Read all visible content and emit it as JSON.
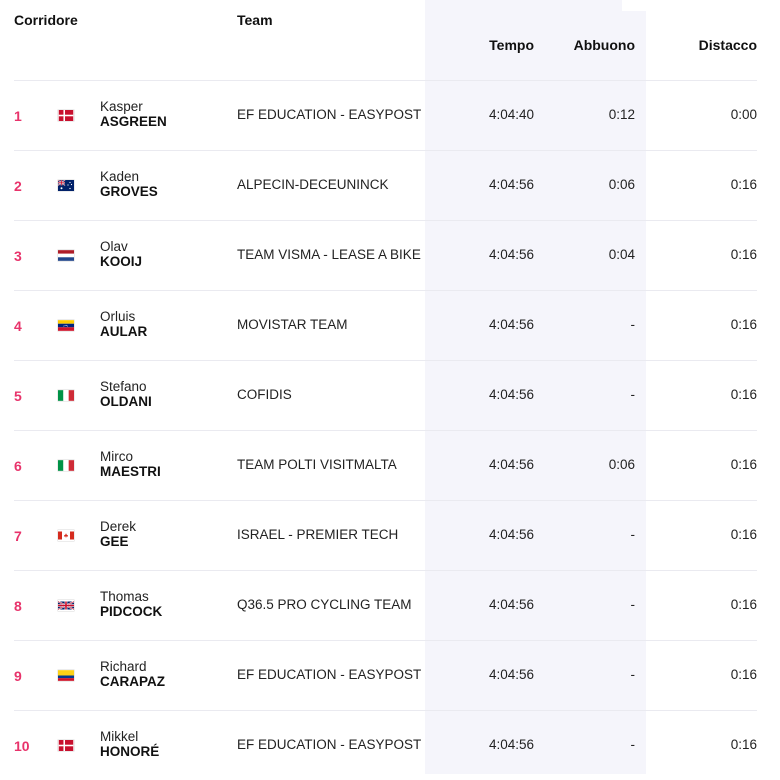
{
  "header": {
    "rider": "Corridore",
    "team": "Team",
    "time": "Tempo",
    "bonus": "Abbuono",
    "gap": "Distacco"
  },
  "rows": [
    {
      "rank": "1",
      "flag": "denmark-flag-icon",
      "first": "Kasper",
      "last": "ASGREEN",
      "team": "EF EDUCATION - EASYPOST",
      "time": "4:04:40",
      "bonus": "0:12",
      "gap": "0:00"
    },
    {
      "rank": "2",
      "flag": "australia-flag-icon",
      "first": "Kaden",
      "last": "GROVES",
      "team": "ALPECIN-DECEUNINCK",
      "time": "4:04:56",
      "bonus": "0:06",
      "gap": "0:16"
    },
    {
      "rank": "3",
      "flag": "netherlands-flag-icon",
      "first": "Olav",
      "last": "KOOIJ",
      "team": "TEAM VISMA - LEASE A BIKE",
      "time": "4:04:56",
      "bonus": "0:04",
      "gap": "0:16"
    },
    {
      "rank": "4",
      "flag": "venezuela-flag-icon",
      "first": "Orluis",
      "last": "AULAR",
      "team": "MOVISTAR TEAM",
      "time": "4:04:56",
      "bonus": "-",
      "gap": "0:16"
    },
    {
      "rank": "5",
      "flag": "italy-flag-icon",
      "first": "Stefano",
      "last": "OLDANI",
      "team": "COFIDIS",
      "time": "4:04:56",
      "bonus": "-",
      "gap": "0:16"
    },
    {
      "rank": "6",
      "flag": "italy-flag-icon",
      "first": "Mirco",
      "last": "MAESTRI",
      "team": "TEAM POLTI VISITMALTA",
      "time": "4:04:56",
      "bonus": "0:06",
      "gap": "0:16"
    },
    {
      "rank": "7",
      "flag": "canada-flag-icon",
      "first": "Derek",
      "last": "GEE",
      "team": "ISRAEL - PREMIER TECH",
      "time": "4:04:56",
      "bonus": "-",
      "gap": "0:16"
    },
    {
      "rank": "8",
      "flag": "uk-flag-icon",
      "first": "Thomas",
      "last": "PIDCOCK",
      "team": "Q36.5 PRO CYCLING TEAM",
      "time": "4:04:56",
      "bonus": "-",
      "gap": "0:16"
    },
    {
      "rank": "9",
      "flag": "colombia-flag-icon",
      "first": "Richard",
      "last": "CARAPAZ",
      "team": "EF EDUCATION - EASYPOST",
      "time": "4:04:56",
      "bonus": "-",
      "gap": "0:16"
    },
    {
      "rank": "10",
      "flag": "denmark-flag-icon",
      "first": "Mikkel",
      "last": "HONORÉ",
      "team": "EF EDUCATION - EASYPOST",
      "time": "4:04:56",
      "bonus": "-",
      "gap": "0:16"
    }
  ],
  "colors": {
    "rank": "#e8336b",
    "band": "#f5f5fb",
    "divider": "#eaeaf0"
  }
}
